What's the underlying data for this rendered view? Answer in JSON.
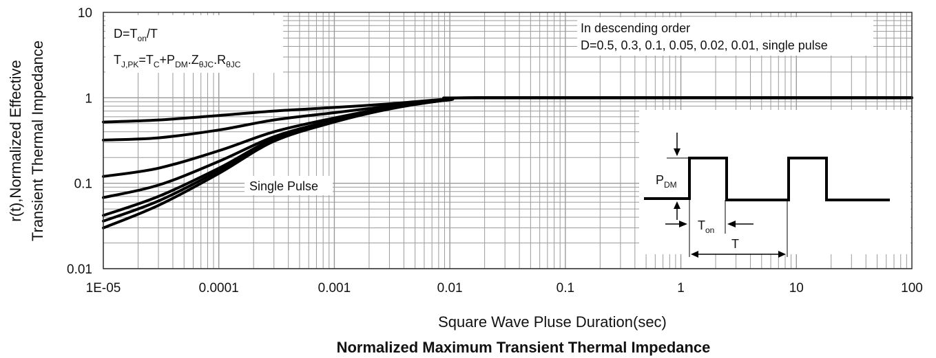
{
  "chart_data": {
    "type": "line",
    "title": "Normalized Maximum Transient Thermal Impedance",
    "xlabel": "Square Wave Pluse Duration(sec)",
    "ylabel_line1": "r(t),Normalized Effective",
    "ylabel_line2": "Transient Thermal Impedance",
    "x_scale": "log",
    "y_scale": "log",
    "xlim": [
      1e-05,
      100
    ],
    "ylim": [
      0.01,
      10
    ],
    "grid": true,
    "x_ticks": [
      "1E-05",
      "0.0001",
      "0.001",
      "0.01",
      "0.1",
      "1",
      "10",
      "100"
    ],
    "y_ticks": [
      "0.01",
      "0.1",
      "1",
      "10"
    ],
    "colors": {
      "curve": "#000000",
      "grid": "#9a9a9a"
    },
    "series": [
      {
        "x": [
          1e-05,
          3e-05,
          0.0001,
          0.0003,
          0.001,
          0.003,
          0.01,
          0.02,
          100
        ],
        "y": [
          0.52,
          0.55,
          0.62,
          0.7,
          0.77,
          0.85,
          0.97,
          1.0,
          1.0
        ]
      },
      {
        "x": [
          1e-05,
          3e-05,
          0.0001,
          0.0003,
          0.001,
          0.003,
          0.01,
          0.02,
          100
        ],
        "y": [
          0.32,
          0.34,
          0.42,
          0.55,
          0.67,
          0.8,
          0.96,
          1.0,
          1.0
        ]
      },
      {
        "x": [
          1e-05,
          3e-05,
          0.0001,
          0.0003,
          0.001,
          0.003,
          0.01,
          0.02,
          100
        ],
        "y": [
          0.12,
          0.15,
          0.24,
          0.4,
          0.58,
          0.77,
          0.95,
          1.0,
          1.0
        ]
      },
      {
        "x": [
          1e-05,
          3e-05,
          0.0001,
          0.0003,
          0.001,
          0.003,
          0.01,
          0.02,
          100
        ],
        "y": [
          0.068,
          0.095,
          0.18,
          0.35,
          0.55,
          0.76,
          0.95,
          1.0,
          1.0
        ]
      },
      {
        "x": [
          1e-05,
          3e-05,
          0.0001,
          0.0003,
          0.001,
          0.003,
          0.01,
          0.02,
          100
        ],
        "y": [
          0.042,
          0.07,
          0.15,
          0.33,
          0.54,
          0.75,
          0.95,
          1.0,
          1.0
        ]
      },
      {
        "x": [
          1e-05,
          3e-05,
          0.0001,
          0.0003,
          0.001,
          0.003,
          0.01,
          0.02,
          100
        ],
        "y": [
          0.036,
          0.062,
          0.14,
          0.32,
          0.53,
          0.75,
          0.95,
          1.0,
          1.0
        ]
      },
      {
        "x": [
          1e-05,
          3e-05,
          0.0001,
          0.0003,
          0.001,
          0.003,
          0.01,
          0.02,
          100
        ],
        "y": [
          0.03,
          0.055,
          0.13,
          0.31,
          0.52,
          0.74,
          0.95,
          1.0,
          1.0
        ]
      }
    ],
    "annotations": {
      "formula_d_main": "D=T",
      "formula_d_sub": "on",
      "formula_d_tail": "/T",
      "formula_tj_main": "T",
      "formula_tj_sub1": "J,PK",
      "formula_tj_mid1": "=T",
      "formula_tj_sub2": "C",
      "formula_tj_mid2": "+P",
      "formula_tj_sub3": "DM",
      "formula_tj_mid3": ".Z",
      "formula_tj_sub4": "θJC",
      "formula_tj_mid4": ".R",
      "formula_tj_sub5": "θJC",
      "order_line1": "In descending order",
      "order_line2": "D=0.5, 0.3, 0.1, 0.05, 0.02, 0.01, single pulse",
      "single_pulse": "Single Pulse",
      "inset_pdm_main": "P",
      "inset_pdm_sub": "DM",
      "inset_ton_main": "T",
      "inset_ton_sub": "on",
      "inset_t": "T"
    }
  }
}
